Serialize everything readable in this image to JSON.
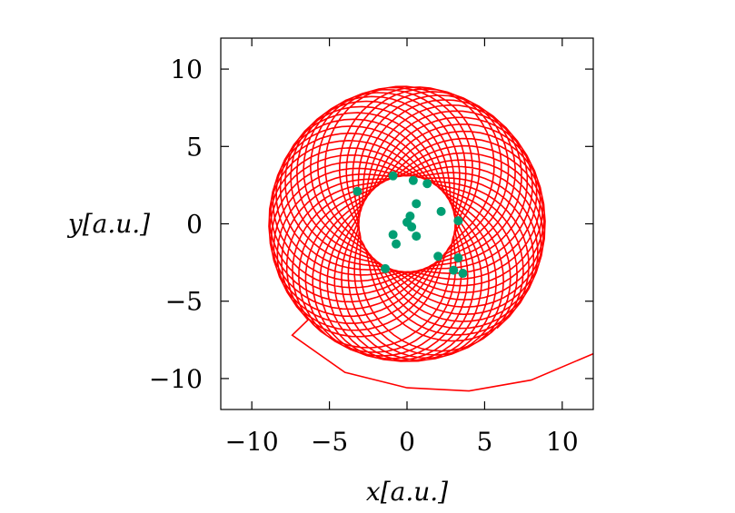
{
  "chart_data": {
    "type": "scatter",
    "xlabel": "x[a.u.]",
    "ylabel": "y[a.u.]",
    "xlim": [
      -12,
      12
    ],
    "ylim": [
      -12,
      12
    ],
    "xticks": [
      -10,
      -5,
      0,
      5,
      10
    ],
    "yticks": [
      -10,
      -5,
      0,
      5,
      10
    ],
    "xtick_labels": [
      "−10",
      "−5",
      "0",
      "5",
      "10"
    ],
    "ytick_labels": [
      "−10",
      "−5",
      "0",
      "5",
      "10"
    ],
    "grid": false,
    "series": [
      {
        "kind": "line",
        "color": "#ff0000",
        "description_values": {
          "orbit_loops": 48,
          "incoming_tail": [
            [
              12,
              -8.4
            ],
            [
              8,
              -10.1
            ],
            [
              4,
              -10.8
            ],
            [
              0,
              -10.6
            ],
            [
              -4,
              -9.6
            ],
            [
              -7.4,
              -7.2
            ]
          ]
        }
      },
      {
        "kind": "points",
        "color": "#009e73",
        "points": [
          [
            -3.2,
            2.1
          ],
          [
            -0.9,
            3.1
          ],
          [
            0.4,
            2.8
          ],
          [
            1.3,
            2.6
          ],
          [
            0.6,
            1.3
          ],
          [
            2.2,
            0.8
          ],
          [
            3.3,
            0.2
          ],
          [
            0.2,
            0.5
          ],
          [
            0.0,
            0.1
          ],
          [
            0.3,
            -0.2
          ],
          [
            0.6,
            -0.8
          ],
          [
            -0.9,
            -0.7
          ],
          [
            -0.7,
            -1.3
          ],
          [
            2.0,
            -2.1
          ],
          [
            3.3,
            -2.2
          ],
          [
            3.0,
            -3.0
          ],
          [
            3.6,
            -3.2
          ],
          [
            -1.4,
            -2.9
          ]
        ]
      }
    ]
  }
}
